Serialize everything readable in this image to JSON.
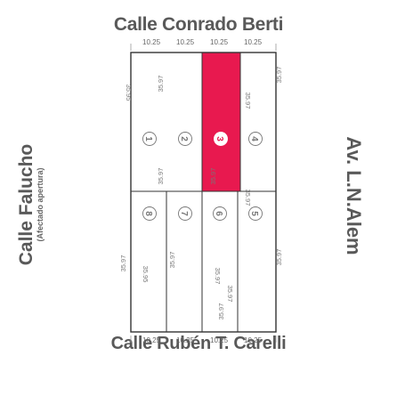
{
  "streets": {
    "top": "Calle Conrado Berti",
    "bottom": "Calle Rubén T. Carelli",
    "left": "Calle Falucho",
    "left_note": "(Afectado apertura)",
    "right": "Av. L.N.Alem"
  },
  "frontage_top": [
    "10.25",
    "10.25",
    "10.25",
    "10.25"
  ],
  "frontage_bottom": [
    "10.25",
    "10.25",
    "10.25",
    "10.25"
  ],
  "depth_labels": {
    "left_side": [
      "35.95",
      "35.97"
    ],
    "right_side": [
      "35.97",
      "35.97"
    ],
    "col_a": [
      "35.95"
    ],
    "col_b": [
      "35.97",
      "35.97",
      "35.97"
    ],
    "col_c": [
      "35.97",
      "35.97",
      "35.97"
    ],
    "col_d": [
      "35.97",
      "35.97",
      "35.97"
    ]
  },
  "lots": [
    {
      "number": "1"
    },
    {
      "number": "2"
    },
    {
      "number": "3",
      "selected": true
    },
    {
      "number": "4"
    },
    {
      "number": "5"
    },
    {
      "number": "6"
    },
    {
      "number": "7"
    },
    {
      "number": "8"
    }
  ],
  "colors": {
    "selected_lot": "#e8194f",
    "block_outline": "#333333",
    "text": "#555555"
  }
}
